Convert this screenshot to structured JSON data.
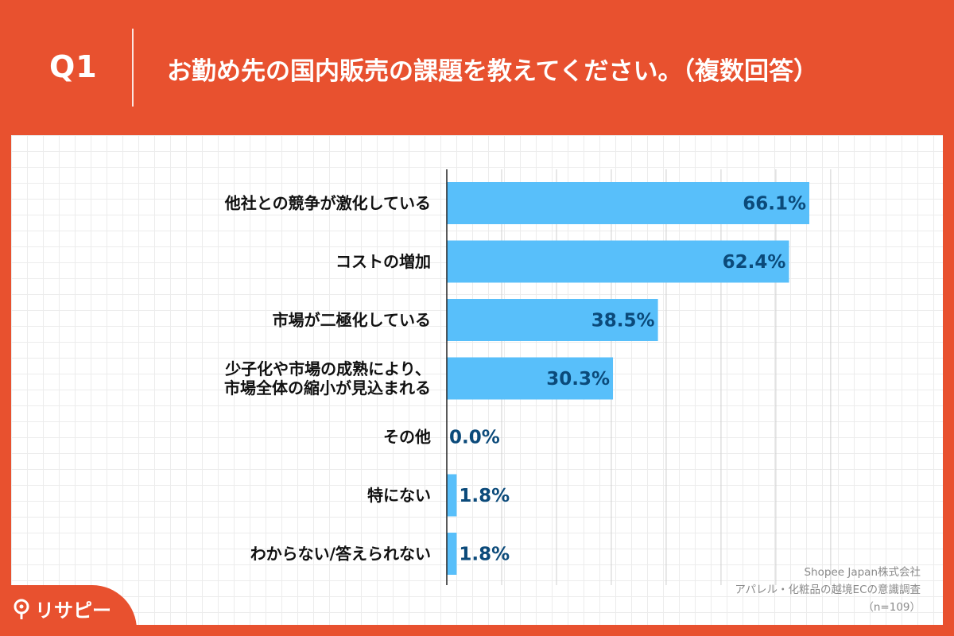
{
  "header": {
    "question_number": "Q1",
    "question_title": "お勤め先の国内販売の課題を教えてください。（複数回答）"
  },
  "chart_data": {
    "type": "bar",
    "orientation": "horizontal",
    "categories": [
      [
        "他社との競争が激化している"
      ],
      [
        "コストの増加"
      ],
      [
        "市場が二極化している"
      ],
      [
        "少子化や市場の成熟により、",
        "市場全体の縮小が見込まれる"
      ],
      [
        "その他"
      ],
      [
        "特にない"
      ],
      [
        "わからない/答えられない"
      ]
    ],
    "values": [
      66.1,
      62.4,
      38.5,
      30.3,
      0.0,
      1.8,
      1.8
    ],
    "value_labels": [
      "66.1%",
      "62.4%",
      "38.5%",
      "30.3%",
      "0.0%",
      "1.8%",
      "1.8%"
    ],
    "xlim": [
      0,
      70
    ],
    "grid": true,
    "bar_color": "#58BFFA",
    "value_label_color": "#0b4a7a"
  },
  "source": {
    "line1": "Shopee Japan株式会社",
    "line2": "アパレル・化粧品の越境ECの意識調査",
    "line3": "（n=109）"
  },
  "logo": {
    "text": "リサピー"
  },
  "colors": {
    "brand": "#E8512F",
    "bar": "#58BFFA"
  }
}
